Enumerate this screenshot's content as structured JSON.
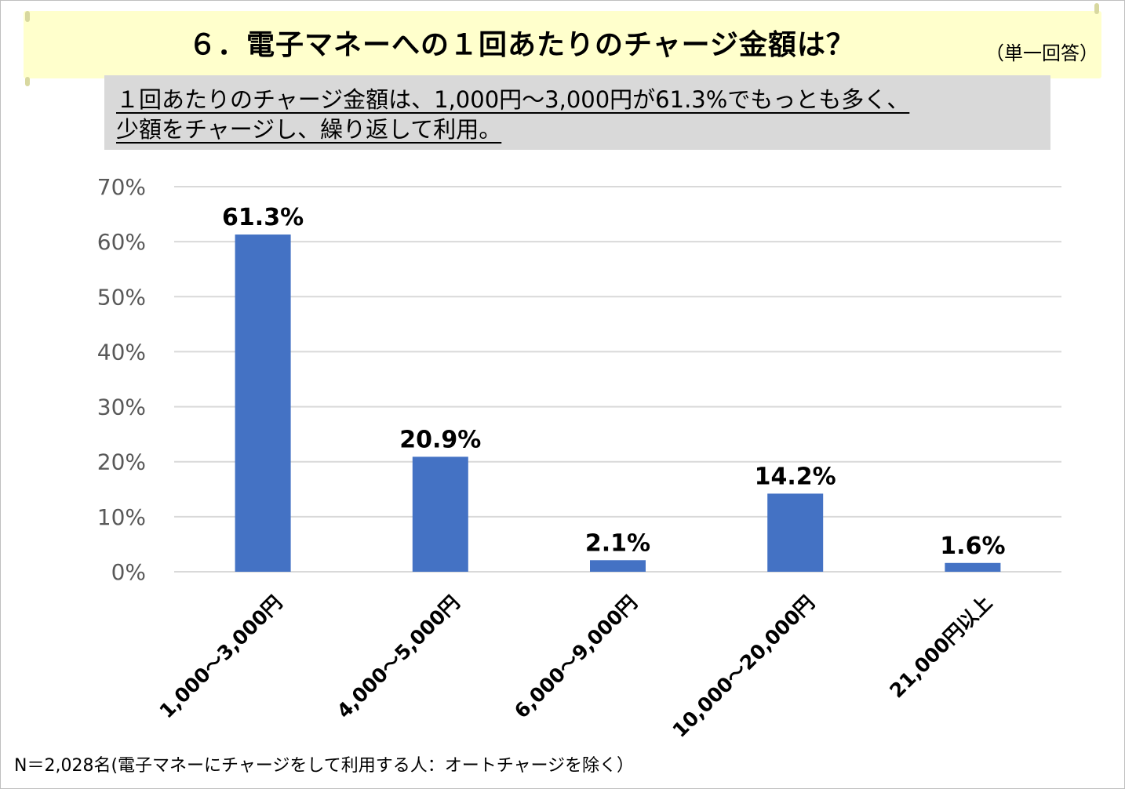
{
  "header": {
    "title": "６．電子マネーへの１回あたりのチャージ金額は？",
    "note": "（単一回答）"
  },
  "summary": {
    "line1": "１回あたりのチャージ金額は、1,000円～3,000円が61.3%でもっとも多く、",
    "line2": "少額をチャージし、繰り返して利用。"
  },
  "footnote": "N＝2,028名(電子マネーにチャージをして利用する人：オートチャージを除く）",
  "chart_data": {
    "type": "bar",
    "categories": [
      "1,000～3,000円",
      "4,000～5,000円",
      "6,000～9,000円",
      "10,000～20,000円",
      "21,000円以上"
    ],
    "values": [
      61.3,
      20.9,
      2.1,
      14.2,
      1.6
    ],
    "value_labels": [
      "61.3%",
      "20.9%",
      "2.1%",
      "14.2%",
      "1.6%"
    ],
    "highlight_index": 0,
    "y_ticks": [
      "0%",
      "10%",
      "20%",
      "30%",
      "40%",
      "50%",
      "60%",
      "70%"
    ],
    "ylim": [
      0,
      70
    ],
    "grid": true,
    "colors": {
      "bar": "#4472c4",
      "highlight_label": "#e00000",
      "label": "#000000",
      "grid": "#d9d9d9"
    }
  }
}
